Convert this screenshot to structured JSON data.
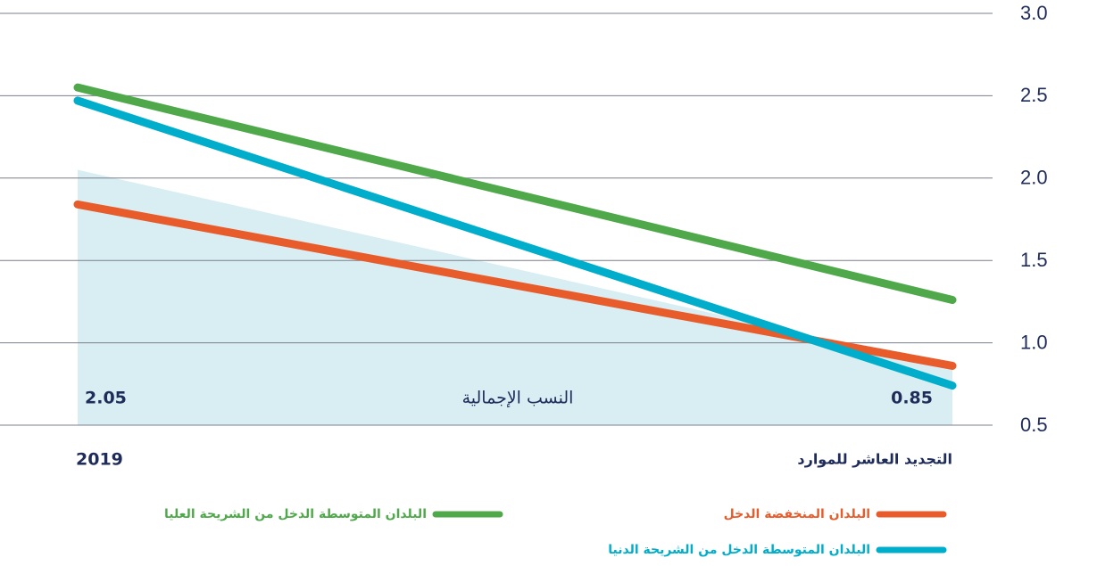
{
  "chart_data": {
    "type": "line",
    "categories": [
      "2019",
      "التجديد العاشر للموارد"
    ],
    "ylim": [
      0.5,
      3.0
    ],
    "yticks": [
      {
        "value": 0.5,
        "label": "0.5"
      },
      {
        "value": 1,
        "label": "1.0"
      },
      {
        "value": 1.5,
        "label": "1.5"
      },
      {
        "value": 2,
        "label": "2.0"
      },
      {
        "value": 2.5,
        "label": "2.5"
      },
      {
        "value": 3,
        "label": "3.0"
      }
    ],
    "grid": true,
    "area": {
      "name": "النسب الإجمالية",
      "color": "#d8eef3",
      "values": [
        2.05,
        0.85
      ]
    },
    "series": [
      {
        "name": "البلدان المتوسطة الدخل من الشريحة العليا",
        "color": "#4fa94a",
        "values": [
          2.55,
          1.26
        ]
      },
      {
        "name": "البلدان المنخفضة الدخل",
        "color": "#e85c2b",
        "values": [
          1.84,
          0.86
        ]
      },
      {
        "name": "البلدان المتوسطة الدخل من الشريحة الدنيا",
        "color": "#00aecb",
        "values": [
          2.47,
          0.74
        ]
      }
    ]
  }
}
